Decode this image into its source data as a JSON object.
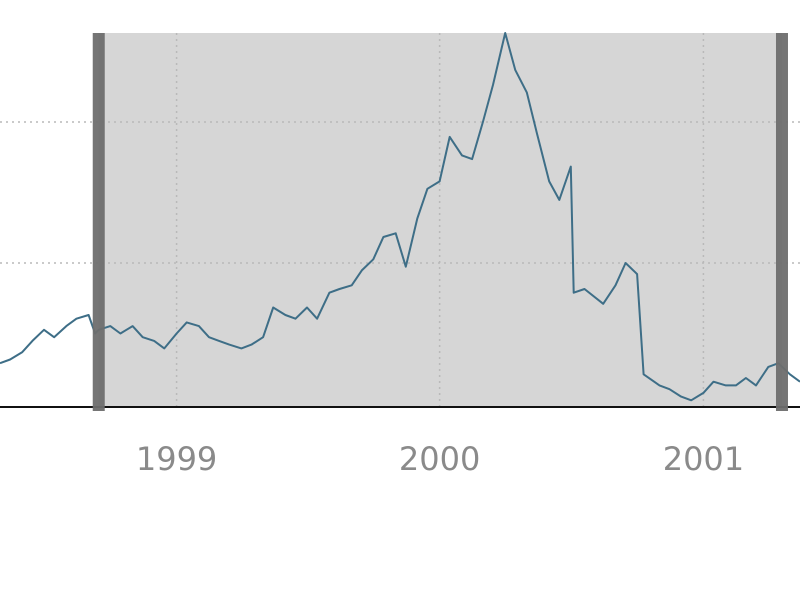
{
  "chart_data": {
    "type": "line",
    "title": "",
    "xlabel": "",
    "ylabel": "",
    "x_ticks": [
      "1999",
      "2000",
      "2001"
    ],
    "x_range": [
      "1998-05-01",
      "2001-05-15"
    ],
    "y_range": [
      0,
      100
    ],
    "y_gridlines": [
      38,
      76
    ],
    "x_gridlines": [
      "1999-01-01",
      "2000-01-01",
      "2001-01-01"
    ],
    "grid": true,
    "legend": "none",
    "colors": {
      "line": "#3e6e87",
      "highlight_fill": "#d6d6d6",
      "brush_handle": "#6e6e6e",
      "baseline": "#111111",
      "tick_label": "#8a8a8a"
    },
    "highlight_range": [
      "1998-09-15",
      "2001-04-20"
    ],
    "series": [
      {
        "values": [
          [
            "1998-05-01",
            11
          ],
          [
            "1998-05-15",
            12
          ],
          [
            "1998-06-01",
            14
          ],
          [
            "1998-06-15",
            17
          ],
          [
            "1998-07-01",
            20
          ],
          [
            "1998-07-15",
            18
          ],
          [
            "1998-08-01",
            21
          ],
          [
            "1998-08-15",
            23
          ],
          [
            "1998-09-01",
            24
          ],
          [
            "1998-09-10",
            19
          ],
          [
            "1998-09-15",
            20
          ],
          [
            "1998-10-01",
            21
          ],
          [
            "1998-10-15",
            19
          ],
          [
            "1998-11-01",
            21
          ],
          [
            "1998-11-15",
            18
          ],
          [
            "1998-12-01",
            17
          ],
          [
            "1998-12-15",
            15
          ],
          [
            "1999-01-01",
            19
          ],
          [
            "1999-01-15",
            22
          ],
          [
            "1999-02-01",
            21
          ],
          [
            "1999-02-15",
            18
          ],
          [
            "1999-03-01",
            17
          ],
          [
            "1999-03-15",
            16
          ],
          [
            "1999-04-01",
            15
          ],
          [
            "1999-04-15",
            16
          ],
          [
            "1999-05-01",
            18
          ],
          [
            "1999-05-15",
            26
          ],
          [
            "1999-06-01",
            24
          ],
          [
            "1999-06-15",
            23
          ],
          [
            "1999-07-01",
            26
          ],
          [
            "1999-07-15",
            23
          ],
          [
            "1999-08-01",
            30
          ],
          [
            "1999-08-15",
            31
          ],
          [
            "1999-09-01",
            32
          ],
          [
            "1999-09-15",
            36
          ],
          [
            "1999-10-01",
            39
          ],
          [
            "1999-10-15",
            45
          ],
          [
            "1999-11-01",
            46
          ],
          [
            "1999-11-15",
            37
          ],
          [
            "1999-12-01",
            50
          ],
          [
            "1999-12-15",
            58
          ],
          [
            "2000-01-01",
            60
          ],
          [
            "2000-01-15",
            72
          ],
          [
            "2000-02-01",
            67
          ],
          [
            "2000-02-15",
            66
          ],
          [
            "2000-03-01",
            76
          ],
          [
            "2000-03-15",
            86
          ],
          [
            "2000-04-01",
            100
          ],
          [
            "2000-04-15",
            90
          ],
          [
            "2000-05-01",
            84
          ],
          [
            "2000-05-15",
            73
          ],
          [
            "2000-06-01",
            60
          ],
          [
            "2000-06-15",
            55
          ],
          [
            "2000-07-01",
            64
          ],
          [
            "2000-07-05",
            30
          ],
          [
            "2000-07-20",
            31
          ],
          [
            "2000-08-15",
            27
          ],
          [
            "2000-09-01",
            32
          ],
          [
            "2000-09-15",
            38
          ],
          [
            "2000-10-01",
            35
          ],
          [
            "2000-10-10",
            8
          ],
          [
            "2000-11-01",
            5
          ],
          [
            "2000-11-15",
            4
          ],
          [
            "2000-12-01",
            2
          ],
          [
            "2000-12-15",
            1
          ],
          [
            "2001-01-01",
            3
          ],
          [
            "2001-01-15",
            6
          ],
          [
            "2001-02-01",
            5
          ],
          [
            "2001-02-15",
            5
          ],
          [
            "2001-03-01",
            7
          ],
          [
            "2001-03-15",
            5
          ],
          [
            "2001-04-01",
            10
          ],
          [
            "2001-04-15",
            11
          ],
          [
            "2001-05-01",
            8
          ],
          [
            "2001-05-15",
            6
          ]
        ]
      }
    ]
  }
}
